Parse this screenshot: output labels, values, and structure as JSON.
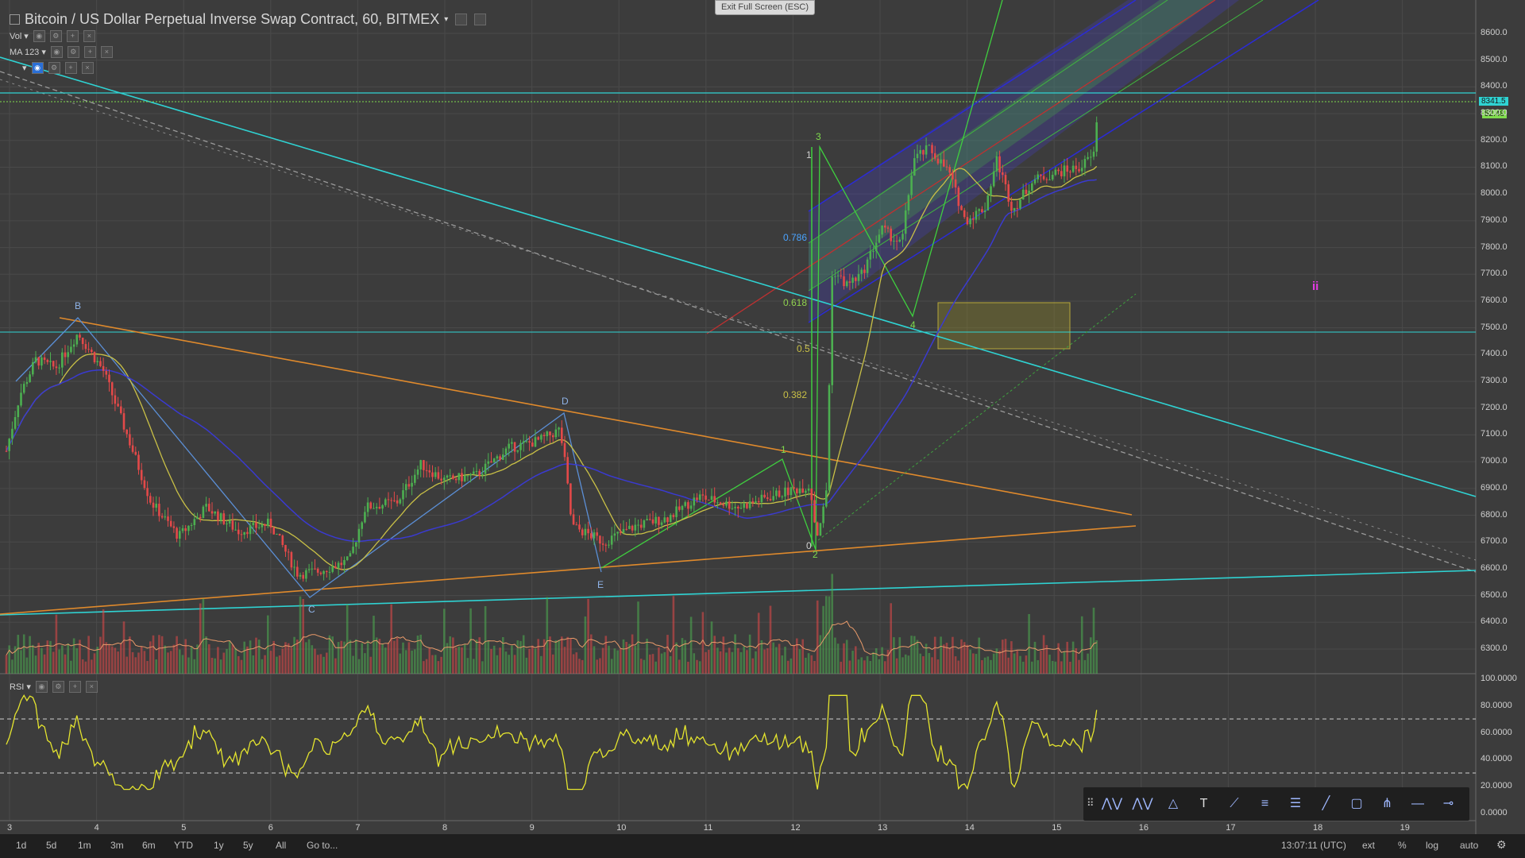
{
  "header": {
    "title": "Bitcoin / US Dollar Perpetual Inverse Swap Contract, 60, BITMEX",
    "exit_fullscreen": "Exit Full Screen (ESC)"
  },
  "indicators": {
    "vol_label": "Vol",
    "ma_label": "MA 123",
    "rsi_label": "RSI"
  },
  "price_axis": [
    "8600.0",
    "8500.0",
    "8400.0",
    "8300.0",
    "8200.0",
    "8100.0",
    "8000.0",
    "7900.0",
    "7800.0",
    "7700.0",
    "7600.0",
    "7500.0",
    "7400.0",
    "7300.0",
    "7200.0",
    "7100.0",
    "7000.0",
    "6900.0",
    "6800.0",
    "6700.0",
    "6600.0",
    "6500.0",
    "6400.0",
    "6300.0"
  ],
  "price_tags": {
    "last_price": "8341.5",
    "countdown": "52:48"
  },
  "rsi_axis": [
    "100.0000",
    "80.0000",
    "60.0000",
    "40.0000",
    "20.0000",
    "0.0000"
  ],
  "time_axis": [
    "3",
    "4",
    "5",
    "6",
    "7",
    "8",
    "9",
    "10",
    "11",
    "12",
    "13",
    "14",
    "15",
    "16",
    "17",
    "18",
    "19"
  ],
  "fib_levels": [
    "1",
    "0.786",
    "0.618",
    "0.5",
    "0.382",
    "0"
  ],
  "pattern_points": [
    "B",
    "C",
    "D",
    "E",
    "1",
    "2",
    "3",
    "4"
  ],
  "wave_marker": "ii",
  "bottom_bar": {
    "ranges": [
      "1d",
      "5d",
      "1m",
      "3m",
      "6m",
      "YTD",
      "1y",
      "5y",
      "All"
    ],
    "goto": "Go to...",
    "clock": "13:07:11 (UTC)",
    "ext": "ext",
    "percent": "%",
    "log": "log",
    "auto": "auto"
  },
  "drawing_tools": [
    "xabcd-pattern-icon",
    "abcd-pattern-icon",
    "triangle-pattern-icon",
    "text-icon",
    "fib-fan-icon",
    "fib-retracement-icon",
    "fib-channel-icon",
    "trend-line-icon",
    "rectangle-icon",
    "pitchfork-icon",
    "horizontal-ray-icon",
    "horizontal-line-icon"
  ],
  "colors": {
    "background": "#3c3c3c",
    "up_candle": "#4caf50",
    "down_candle": "#e34949",
    "cyan_line": "#2fd3d3",
    "orange_line": "#e08a2c",
    "rsi_line": "#e5e52e"
  },
  "chart_data": {
    "type": "candlestick",
    "title": "Bitcoin / US Dollar Perpetual Inverse Swap Contract, 60, BITMEX",
    "ylim": [
      6200,
      8650
    ],
    "x_ticks": [
      "3",
      "4",
      "5",
      "6",
      "7",
      "8",
      "9",
      "10",
      "11",
      "12",
      "13",
      "14",
      "15",
      "16",
      "17",
      "18",
      "19"
    ],
    "last_price": 8341.5,
    "rsi_range": [
      0,
      100
    ],
    "rsi_bands": [
      70,
      30
    ]
  }
}
